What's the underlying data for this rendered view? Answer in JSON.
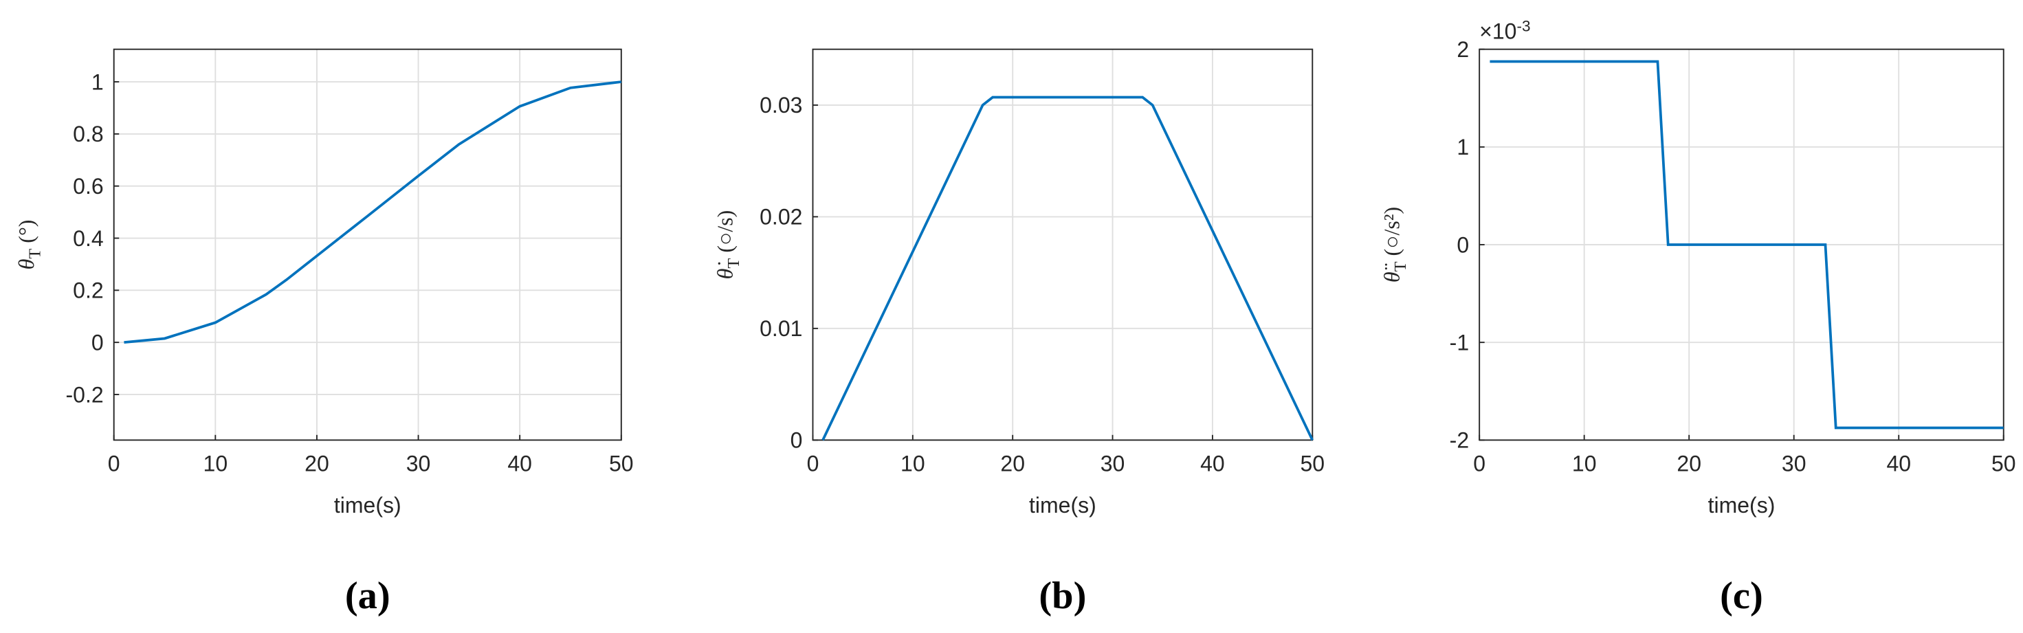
{
  "chart_data": [
    {
      "type": "line",
      "panel_label": "(a)",
      "xlabel": "time(s)",
      "ylabel": "θ",
      "ylabel_sub": "T",
      "ylabel_unit": " (°)",
      "x": [
        1,
        5,
        10,
        15,
        17,
        20,
        25,
        30,
        34,
        40,
        45,
        50
      ],
      "series": [
        {
          "color": "#0072bd",
          "values": [
            0,
            0.015,
            0.076,
            0.184,
            0.24,
            0.332,
            0.485,
            0.639,
            0.76,
            0.906,
            0.977,
            1
          ]
        }
      ],
      "xlim": [
        0,
        50
      ],
      "xticks": [
        0,
        10,
        20,
        30,
        40,
        50
      ],
      "ylim": [
        -0.375,
        1.125
      ],
      "yticks": [
        -0.2,
        0,
        0.2,
        0.4,
        0.6,
        0.8,
        1
      ],
      "grid": true
    },
    {
      "type": "line",
      "panel_label": "(b)",
      "xlabel": "time(s)",
      "ylabel": "θ̇",
      "ylabel_sub": "T",
      "ylabel_unit": " (○/s)",
      "x": [
        1,
        17,
        18,
        33,
        34,
        50
      ],
      "series": [
        {
          "color": "#0072bd",
          "values": [
            0,
            0.03,
            0.0307,
            0.0307,
            0.03,
            0
          ]
        }
      ],
      "xlim": [
        0,
        50
      ],
      "xticks": [
        0,
        10,
        20,
        30,
        40,
        50
      ],
      "ylim": [
        0,
        0.035
      ],
      "yticks": [
        0,
        0.01,
        0.02,
        0.03
      ],
      "grid": true
    },
    {
      "type": "line",
      "panel_label": "(c)",
      "xlabel": "time(s)",
      "ylabel": "θ̈",
      "ylabel_sub": "T",
      "ylabel_unit": " (○/s²)",
      "y_multiplier_base": "×10",
      "y_multiplier_exp": "-3",
      "x": [
        1,
        17,
        18,
        33,
        34,
        50
      ],
      "series": [
        {
          "color": "#0072bd",
          "values": [
            1.875,
            1.875,
            0,
            0,
            -1.875,
            -1.875
          ]
        }
      ],
      "xlim": [
        0,
        50
      ],
      "xticks": [
        0,
        10,
        20,
        30,
        40,
        50
      ],
      "ylim": [
        -2,
        2
      ],
      "yticks": [
        -2,
        -1,
        0,
        1,
        2
      ],
      "grid": true
    }
  ]
}
